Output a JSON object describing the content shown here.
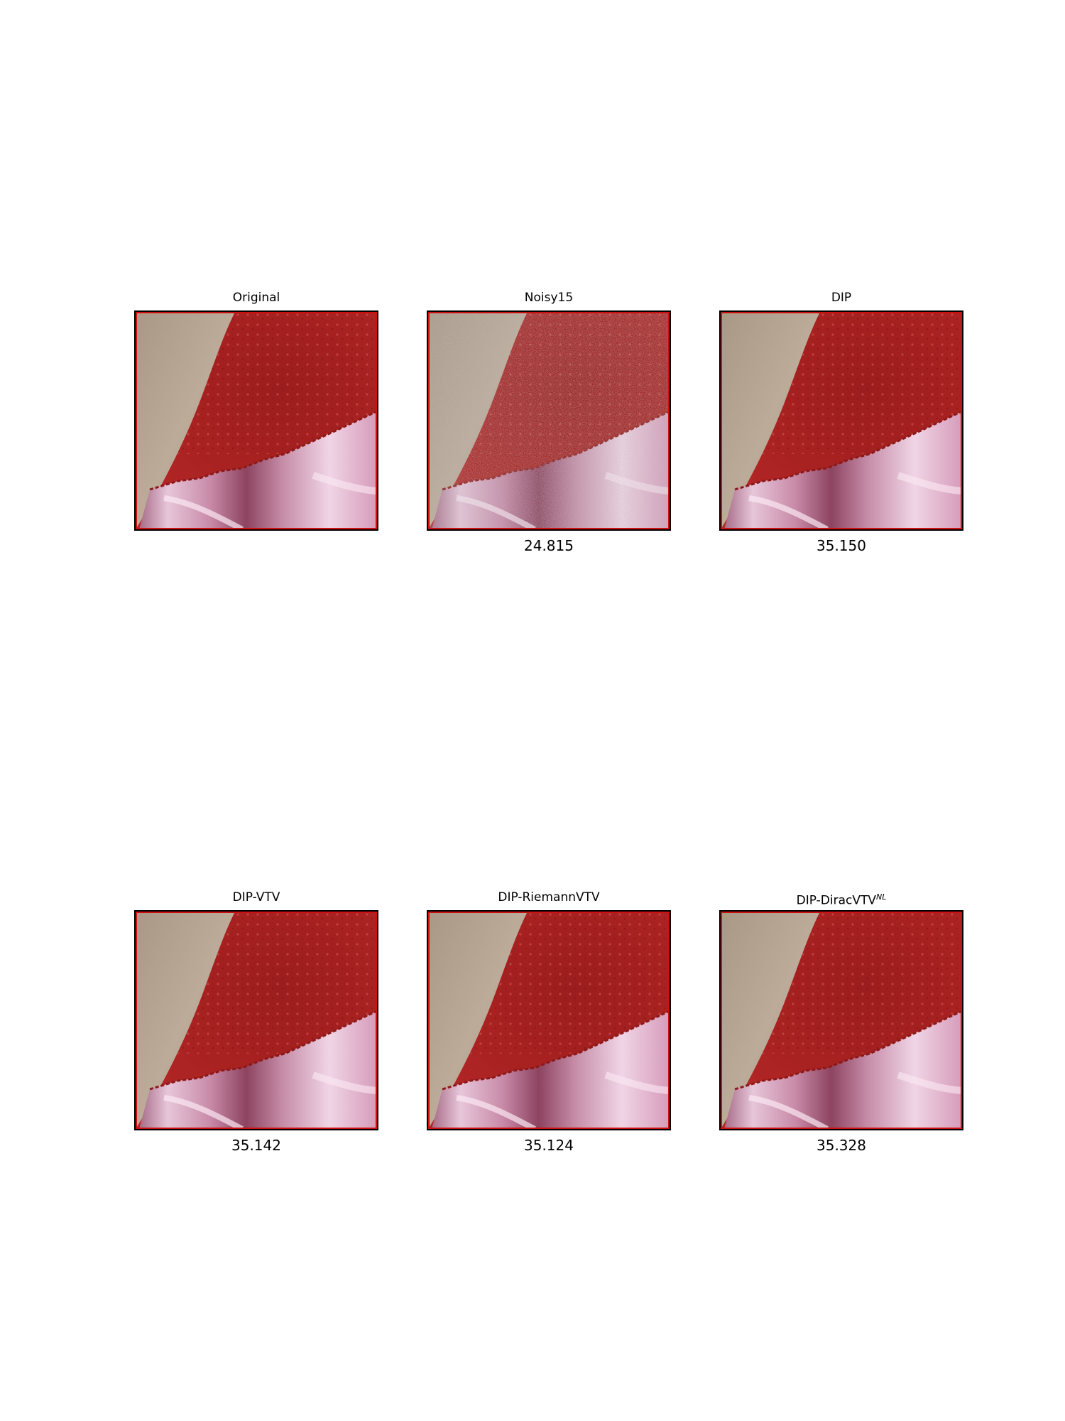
{
  "panels": [
    {
      "title": "Original",
      "score": ""
    },
    {
      "title": "Noisy15",
      "score": "24.815"
    },
    {
      "title": "DIP",
      "score": "35.150"
    },
    {
      "title": "DIP-VTV",
      "score": "35.142"
    },
    {
      "title": "DIP-RiemannVTV",
      "score": "35.124"
    },
    {
      "title": "DIP-DiracVTV",
      "title_superscript": "NL",
      "score": "35.328"
    }
  ],
  "colors": {
    "frame_border": "#000000",
    "inner_border": "#cc1010",
    "skin": "#b6a492",
    "red_fabric": "#a8201f",
    "pink_satin": "#d59bb7"
  }
}
